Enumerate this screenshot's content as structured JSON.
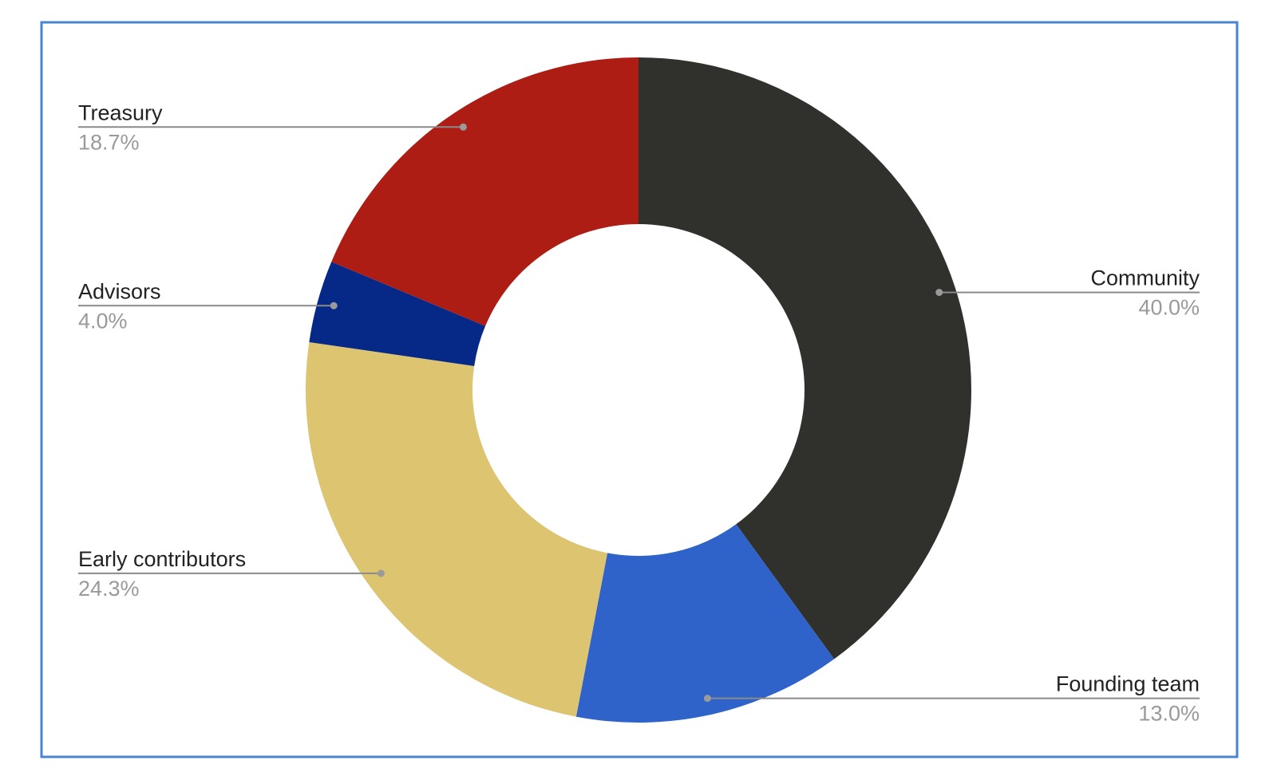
{
  "chart_data": {
    "type": "donut",
    "categories": [
      "Community",
      "Founding team",
      "Early contributors",
      "Advisors",
      "Treasury"
    ],
    "values": [
      40.0,
      13.0,
      24.3,
      4.0,
      18.7
    ],
    "value_labels": [
      "40.0%",
      "13.0%",
      "24.3%",
      "4.0%",
      "18.7%"
    ],
    "colors": [
      "#30302d",
      "#2f63c9",
      "#dcc470",
      "#062987",
      "#ae1d14"
    ]
  }
}
